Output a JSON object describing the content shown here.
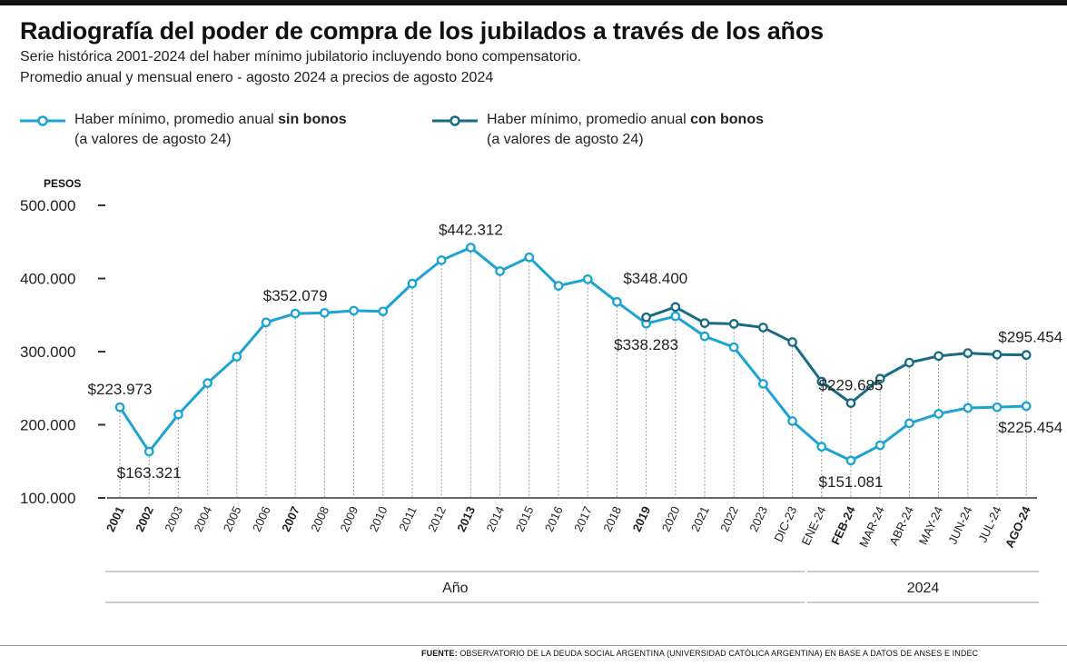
{
  "header": {
    "title": "Radiografía del poder de compra de los jubilados a través de los años",
    "subtitle_1": "Serie histórica 2001-2024 del haber mínimo jubilatorio incluyendo bono compensatorio.",
    "subtitle_2": "Promedio anual y mensual enero - agosto 2024 a precios de agosto 2024"
  },
  "legend": {
    "sin_bonos": {
      "prefix": "Haber mínimo, promedio anual ",
      "bold": "sin bonos",
      "line2": "(a valores de agosto 24)"
    },
    "con_bonos": {
      "prefix": "Haber mínimo, promedio anual ",
      "bold": "con bonos",
      "line2": "(a valores de agosto 24)"
    }
  },
  "colors": {
    "sin_bonos": "#1aa3d3",
    "con_bonos": "#176b84",
    "grid": "#9a9a9a",
    "text": "#222222"
  },
  "footer": {
    "label": "FUENTE:",
    "text": "OBSERVATORIO DE LA DEUDA SOCIAL ARGENTINA (UNIVERSIDAD CATÓLICA ARGENTINA) EN BASE A DATOS DE ANSES E INDEC"
  },
  "chart_data": {
    "type": "line",
    "ylabel": "PESOS",
    "ylim": [
      100000,
      500000
    ],
    "yticks": [
      100000,
      200000,
      300000,
      400000,
      500000
    ],
    "ytick_labels": [
      "100.000",
      "200.000",
      "300.000",
      "400.000",
      "500.000"
    ],
    "categories": [
      "2001",
      "2002",
      "2003",
      "2004",
      "2005",
      "2006",
      "2007",
      "2008",
      "2009",
      "2010",
      "2011",
      "2012",
      "2013",
      "2014",
      "2015",
      "2016",
      "2017",
      "2018",
      "2019",
      "2020",
      "2021",
      "2022",
      "2023",
      "DIC-23",
      "ENE-24",
      "FEB-24",
      "MAR-24",
      "ABR-24",
      "MAY-24",
      "JUN-24",
      "JUL-24",
      "AGO-24"
    ],
    "bold_categories": [
      "2001",
      "2002",
      "2007",
      "2013",
      "2019",
      "FEB-24",
      "AGO-24"
    ],
    "groups": [
      {
        "label": "Año",
        "from": "2001",
        "to": "DIC-23"
      },
      {
        "label": "2024",
        "from": "ENE-24",
        "to": "AGO-24"
      }
    ],
    "series": [
      {
        "name": "sin bonos",
        "values": [
          223973,
          163321,
          214000,
          257000,
          293000,
          340000,
          352079,
          353000,
          356000,
          355000,
          393000,
          425000,
          442312,
          410000,
          429000,
          390000,
          399000,
          368000,
          338283,
          348400,
          321000,
          306000,
          256000,
          205000,
          170000,
          151081,
          172000,
          202000,
          215000,
          223000,
          224000,
          225454
        ]
      },
      {
        "name": "con bonos",
        "values": [
          null,
          null,
          null,
          null,
          null,
          null,
          null,
          null,
          null,
          null,
          null,
          null,
          null,
          null,
          null,
          null,
          null,
          null,
          347000,
          361000,
          339000,
          338000,
          333000,
          313000,
          259000,
          229685,
          263000,
          285000,
          294000,
          298000,
          296000,
          295454
        ]
      }
    ],
    "annotations": [
      {
        "series": "sin bonos",
        "category": "2001",
        "text": "$223.973",
        "pos": "above"
      },
      {
        "series": "sin bonos",
        "category": "2002",
        "text": "$163.321",
        "pos": "below"
      },
      {
        "series": "sin bonos",
        "category": "2007",
        "text": "$352.079",
        "pos": "above"
      },
      {
        "series": "sin bonos",
        "category": "2013",
        "text": "$442.312",
        "pos": "above"
      },
      {
        "series": "sin bonos",
        "category": "2019",
        "text": "$338.283",
        "pos": "below"
      },
      {
        "series": "sin bonos",
        "category": "2020",
        "text": "$348.400",
        "pos": "above-left"
      },
      {
        "series": "con bonos",
        "category": "FEB-24",
        "text": "$229.685",
        "pos": "above"
      },
      {
        "series": "sin bonos",
        "category": "FEB-24",
        "text": "$151.081",
        "pos": "below"
      },
      {
        "series": "con bonos",
        "category": "AGO-24",
        "text": "$295.454",
        "pos": "above"
      },
      {
        "series": "sin bonos",
        "category": "AGO-24",
        "text": "$225.454",
        "pos": "below"
      }
    ]
  }
}
